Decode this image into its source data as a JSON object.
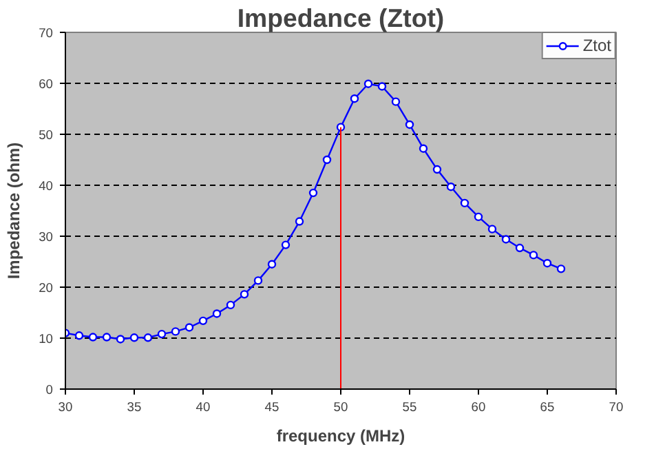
{
  "chart_data": {
    "type": "line",
    "title": "Impedance (Ztot)",
    "xlabel": "frequency (MHz)",
    "ylabel": "Impedance (ohm)",
    "x": [
      30,
      31,
      32,
      33,
      34,
      35,
      36,
      37,
      38,
      39,
      40,
      41,
      42,
      43,
      44,
      45,
      46,
      47,
      48,
      49,
      50,
      51,
      52,
      53,
      54,
      55,
      56,
      57,
      58,
      59,
      60,
      61,
      62,
      63,
      64,
      65,
      66
    ],
    "series": [
      {
        "name": "Ztot",
        "color": "#0000ff",
        "values": [
          11.0,
          10.5,
          10.2,
          10.2,
          9.8,
          10.1,
          10.1,
          10.8,
          11.3,
          12.1,
          13.4,
          14.8,
          16.5,
          18.6,
          21.3,
          24.5,
          28.3,
          32.9,
          38.5,
          45.0,
          51.4,
          57.0,
          59.9,
          59.4,
          56.4,
          51.9,
          47.2,
          43.1,
          39.7,
          36.5,
          33.8,
          31.4,
          29.4,
          27.7,
          26.3,
          24.7,
          23.6
        ]
      }
    ],
    "xlim": [
      30,
      70
    ],
    "xticks": [
      30,
      35,
      40,
      45,
      50,
      55,
      60,
      65,
      70
    ],
    "ylim": [
      0,
      70
    ],
    "yticks": [
      0,
      10,
      20,
      30,
      40,
      50,
      60,
      70
    ],
    "grid": "y",
    "legend": "top right",
    "marker": "circle",
    "line_style": "solid",
    "ref_lines": [
      {
        "axis": "x",
        "value": 50,
        "color": "#ff0000"
      }
    ]
  }
}
